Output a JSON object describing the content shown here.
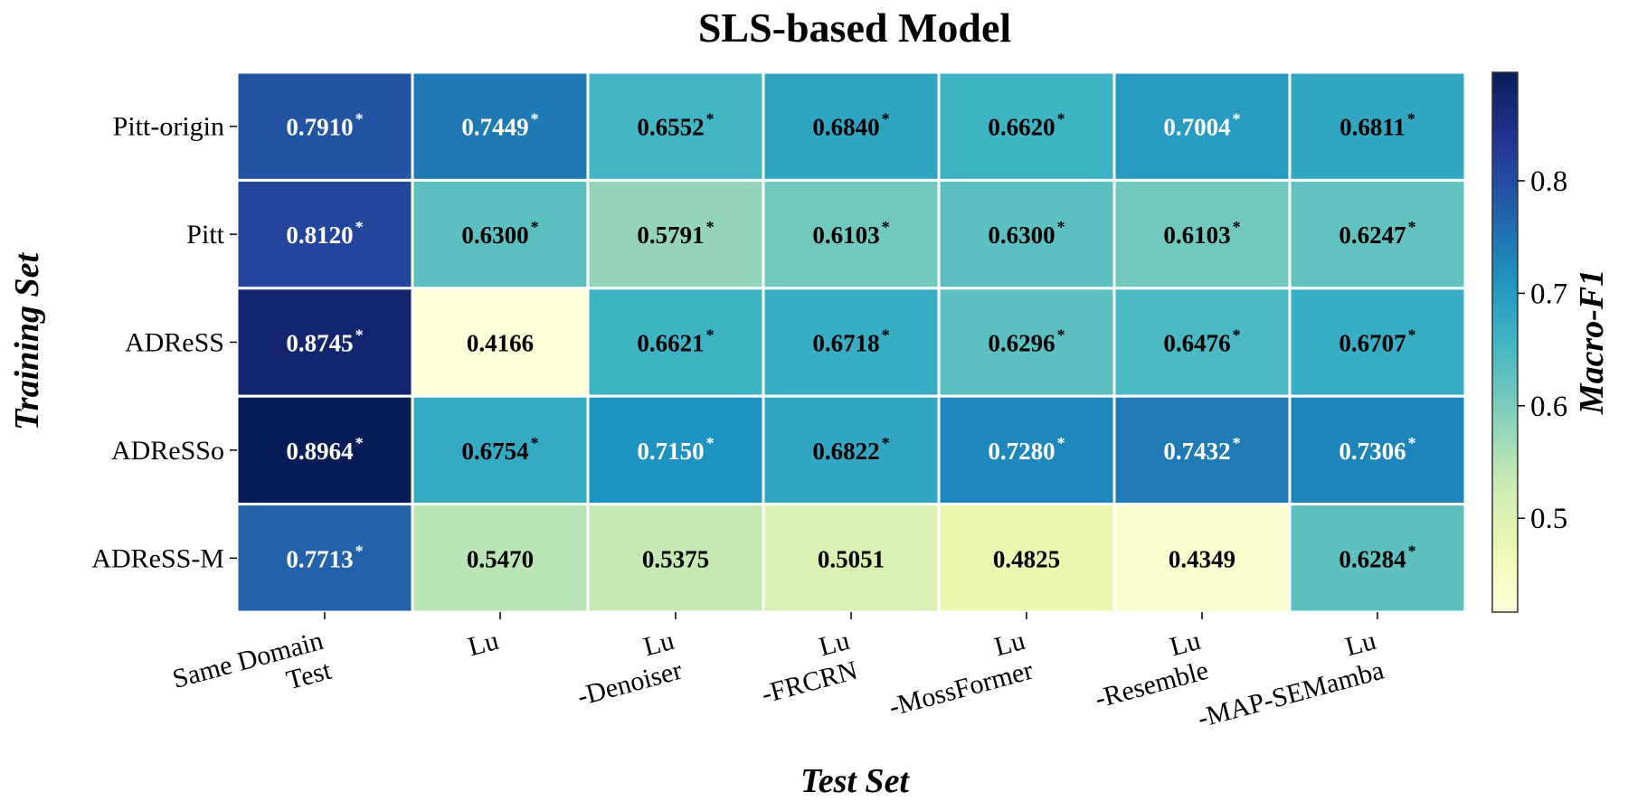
{
  "chart_data": {
    "type": "heatmap",
    "title": "SLS-based Model",
    "xlabel": "Test Set",
    "ylabel": "Training Set",
    "colorbar_label": "Macro-F1",
    "rows": [
      "Pitt-origin",
      "Pitt",
      "ADReSS",
      "ADReSSo",
      "ADReSS-M"
    ],
    "columns": [
      [
        "Same Domain",
        "Test"
      ],
      [
        "Lu"
      ],
      [
        "Lu",
        "-Denoiser"
      ],
      [
        "Lu",
        "-FRCRN"
      ],
      [
        "Lu",
        "-MossFormer"
      ],
      [
        "Lu",
        "-Resemble"
      ],
      [
        "Lu",
        "-MAP-SEMamba"
      ]
    ],
    "values": [
      [
        0.791,
        0.7449,
        0.6552,
        0.684,
        0.662,
        0.7004,
        0.6811
      ],
      [
        0.812,
        0.63,
        0.5791,
        0.6103,
        0.63,
        0.6103,
        0.6247
      ],
      [
        0.8745,
        0.4166,
        0.6621,
        0.6718,
        0.6296,
        0.6476,
        0.6707
      ],
      [
        0.8964,
        0.6754,
        0.715,
        0.6822,
        0.728,
        0.7432,
        0.7306
      ],
      [
        0.7713,
        0.547,
        0.5375,
        0.5051,
        0.4825,
        0.4349,
        0.6284
      ]
    ],
    "labels": [
      [
        "0.7910",
        "0.7449",
        "0.6552",
        "0.6840",
        "0.6620",
        "0.7004",
        "0.6811"
      ],
      [
        "0.8120",
        "0.6300",
        "0.5791",
        "0.6103",
        "0.6300",
        "0.6103",
        "0.6247"
      ],
      [
        "0.8745",
        "0.4166",
        "0.6621",
        "0.6718",
        "0.6296",
        "0.6476",
        "0.6707"
      ],
      [
        "0.8964",
        "0.6754",
        "0.7150",
        "0.6822",
        "0.7280",
        "0.7432",
        "0.7306"
      ],
      [
        "0.7713",
        "0.5470",
        "0.5375",
        "0.5051",
        "0.4825",
        "0.4349",
        "0.6284"
      ]
    ],
    "significant": [
      [
        true,
        true,
        true,
        true,
        true,
        true,
        true
      ],
      [
        true,
        true,
        true,
        true,
        true,
        true,
        true
      ],
      [
        true,
        false,
        true,
        true,
        true,
        true,
        true
      ],
      [
        true,
        true,
        true,
        true,
        true,
        true,
        true
      ],
      [
        true,
        false,
        false,
        false,
        false,
        false,
        true
      ]
    ],
    "significance_marker": "*",
    "colormap": "YlGnBu",
    "color_range": [
      0.4166,
      0.8964
    ],
    "colorbar_ticks": [
      0.5,
      0.6,
      0.7,
      0.8
    ],
    "colorbar_tick_labels": [
      "0.5",
      "0.6",
      "0.7",
      "0.8"
    ],
    "text_color_light": "#ffffff",
    "text_color_dark": "#000000",
    "grid_line_color": "#ffffff"
  }
}
